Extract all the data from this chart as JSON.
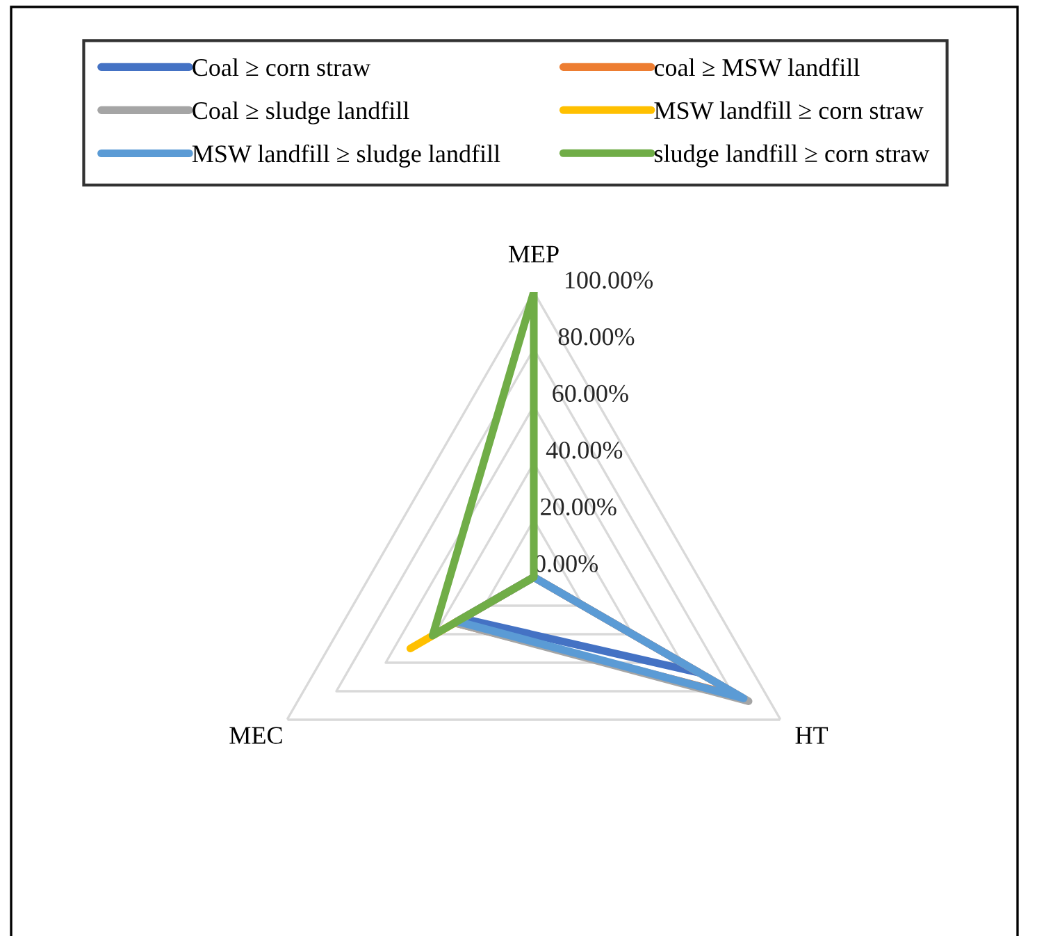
{
  "chart_data": {
    "type": "radar",
    "categories": [
      "MEP",
      "HT",
      "MEC"
    ],
    "series": [
      {
        "name": "Coal ≥ corn straw",
        "color": "#4472c4",
        "values": [
          0,
          67,
          29
        ]
      },
      {
        "name": "coal ≥ MSW landfill",
        "color": "#ed7d31",
        "values": [
          0,
          84,
          32
        ]
      },
      {
        "name": "Coal ≥ sludge landfill",
        "color": "#a5a5a5",
        "values": [
          0,
          87,
          32
        ]
      },
      {
        "name": "MSW landfill ≥ corn straw",
        "color": "#ffc000",
        "values": [
          0,
          0,
          50
        ]
      },
      {
        "name": "MSW landfill ≥ sludge landfill",
        "color": "#5b9bd5",
        "values": [
          0,
          85,
          31
        ]
      },
      {
        "name": "sludge landfill ≥ corn straw",
        "color": "#70ad47",
        "values": [
          100,
          0,
          41
        ]
      }
    ],
    "ylim": [
      0,
      100
    ],
    "yticks": [
      {
        "value": 0,
        "label": "0.00%"
      },
      {
        "value": 20,
        "label": "20.00%"
      },
      {
        "value": 40,
        "label": "40.00%"
      },
      {
        "value": 60,
        "label": "60.00%"
      },
      {
        "value": 80,
        "label": "80.00%"
      },
      {
        "value": 100,
        "label": "100.00%"
      }
    ],
    "grid": true,
    "legend": "top"
  }
}
